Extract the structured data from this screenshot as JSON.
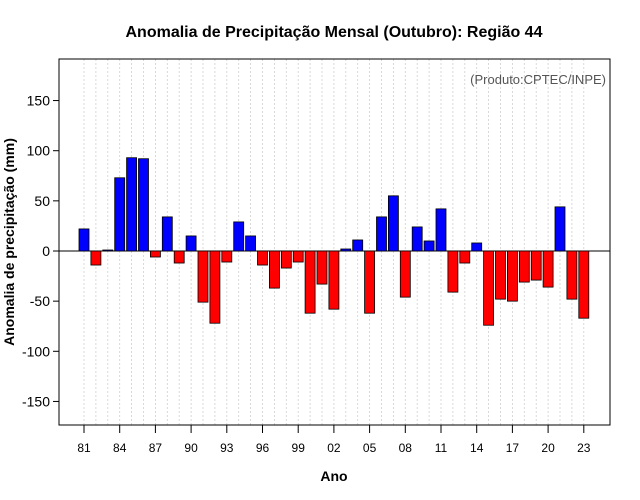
{
  "chart_data": {
    "type": "bar",
    "title": "Anomalia de Precipitação Mensal (Outubro): Região 44",
    "xlabel": "Ano",
    "ylabel": "Anomalia de precipitação (mm)",
    "annotation": "(Produto:CPTEC/INPE)",
    "ylim": [
      -175,
      190
    ],
    "yticks": [
      -150,
      -100,
      -50,
      0,
      50,
      100,
      150
    ],
    "xtick_labels": [
      "81",
      "84",
      "87",
      "90",
      "93",
      "96",
      "99",
      "02",
      "05",
      "08",
      "11",
      "14",
      "17",
      "20",
      "23"
    ],
    "xtick_every": 3,
    "positive_color": "#0000ff",
    "negative_color": "#ff0000",
    "categories": [
      "1981",
      "1982",
      "1983",
      "1984",
      "1985",
      "1986",
      "1987",
      "1988",
      "1989",
      "1990",
      "1991",
      "1992",
      "1993",
      "1994",
      "1995",
      "1996",
      "1997",
      "1998",
      "1999",
      "2000",
      "2001",
      "2002",
      "2003",
      "2004",
      "2005",
      "2006",
      "2007",
      "2008",
      "2009",
      "2010",
      "2011",
      "2012",
      "2013",
      "2014",
      "2015",
      "2016",
      "2017",
      "2018",
      "2019",
      "2020",
      "2021",
      "2022",
      "2023"
    ],
    "values": [
      22,
      -14,
      1,
      73,
      93,
      92,
      -6,
      34,
      -12,
      15,
      -51,
      -72,
      -11,
      29,
      15,
      -14,
      -37,
      -17,
      -11,
      -62,
      -33,
      -58,
      2,
      11,
      -62,
      34,
      55,
      -46,
      24,
      10,
      42,
      -41,
      -12,
      8,
      -74,
      -48,
      -50,
      -31,
      -29,
      -36,
      44,
      -48,
      -67
    ]
  }
}
